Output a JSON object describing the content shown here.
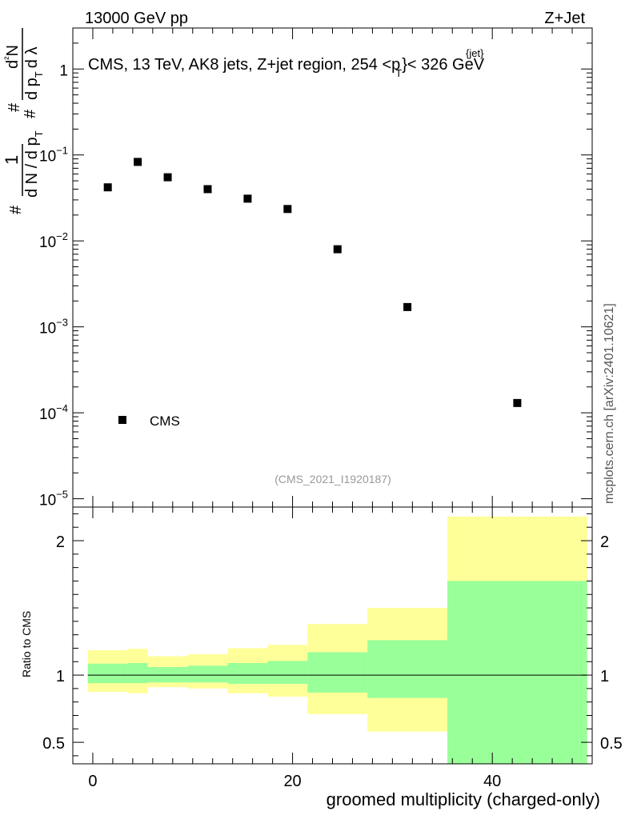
{
  "header": {
    "left": "13000 GeV pp",
    "right": "Z+Jet"
  },
  "side_label": "mcplots.cern.ch [arXiv:2401.10621]",
  "watermark": "(CMS_2021_I1920187)",
  "chart_data": [
    {
      "type": "scatter",
      "title": "CMS, 13 TeV, AK8 jets, Z+jet region, 254 <p",
      "title_sup": "{jet}",
      "title_sub": "T",
      "title_tail": "}< 326 GeV",
      "yscale": "log",
      "ylim": [
        8e-06,
        3
      ],
      "xlim": [
        -2,
        50
      ],
      "y_ticks": [
        {
          "v": 1,
          "base": "1",
          "exp": ""
        },
        {
          "v": 0.1,
          "base": "10",
          "exp": "−1"
        },
        {
          "v": 0.01,
          "base": "10",
          "exp": "−2"
        },
        {
          "v": 0.001,
          "base": "10",
          "exp": "−3"
        },
        {
          "v": 0.0001,
          "base": "10",
          "exp": "−4"
        },
        {
          "v": 1e-05,
          "base": "10",
          "exp": "−5"
        }
      ],
      "ylabel_parts": [
        "1",
        "d N / d p",
        "T",
        "#",
        "d",
        "²",
        "N",
        "d p",
        "T",
        "d λ",
        "#",
        "#"
      ],
      "series": [
        {
          "name": "CMS",
          "x": [
            1.5,
            4.5,
            7.5,
            11.5,
            15.5,
            19.5,
            24.5,
            31.5,
            42.5
          ],
          "y": [
            0.042,
            0.083,
            0.055,
            0.04,
            0.031,
            0.0235,
            0.008,
            0.0017,
            0.00013
          ]
        }
      ],
      "legend": {
        "entries": [
          "CMS"
        ],
        "position": "bottom-left"
      }
    },
    {
      "type": "area",
      "ylabel": "Ratio to CMS",
      "xlabel": "groomed multiplicity (charged-only)",
      "xlim": [
        -2,
        50
      ],
      "ylim": [
        0.34,
        2.25
      ],
      "x_ticks": [
        0,
        20,
        40
      ],
      "y_ticks": [
        0.5,
        1,
        2
      ],
      "reference_line": 1,
      "bands": [
        {
          "name": "total uncertainty",
          "color": "#ffff99",
          "bins": [
            {
              "x0": -0.5,
              "x1": 3.5,
              "lo": 0.875,
              "hi": 1.185
            },
            {
              "x0": 3.5,
              "x1": 5.5,
              "lo": 0.865,
              "hi": 1.195
            },
            {
              "x0": 5.5,
              "x1": 9.5,
              "lo": 0.91,
              "hi": 1.14
            },
            {
              "x0": 9.5,
              "x1": 13.5,
              "lo": 0.9,
              "hi": 1.155
            },
            {
              "x0": 13.5,
              "x1": 17.5,
              "lo": 0.865,
              "hi": 1.2
            },
            {
              "x0": 17.5,
              "x1": 21.5,
              "lo": 0.84,
              "hi": 1.225
            },
            {
              "x0": 21.5,
              "x1": 27.5,
              "lo": 0.71,
              "hi": 1.38
            },
            {
              "x0": 27.5,
              "x1": 35.5,
              "lo": 0.58,
              "hi": 1.5
            },
            {
              "x0": 35.5,
              "x1": 49.5,
              "lo": 0.34,
              "hi": 2.18
            }
          ]
        },
        {
          "name": "statistical uncertainty",
          "color": "#99ff99",
          "bins": [
            {
              "x0": -0.5,
              "x1": 3.5,
              "lo": 0.94,
              "hi": 1.085
            },
            {
              "x0": 3.5,
              "x1": 5.5,
              "lo": 0.94,
              "hi": 1.09
            },
            {
              "x0": 5.5,
              "x1": 9.5,
              "lo": 0.945,
              "hi": 1.06
            },
            {
              "x0": 9.5,
              "x1": 13.5,
              "lo": 0.945,
              "hi": 1.07
            },
            {
              "x0": 13.5,
              "x1": 17.5,
              "lo": 0.935,
              "hi": 1.09
            },
            {
              "x0": 17.5,
              "x1": 21.5,
              "lo": 0.935,
              "hi": 1.105
            },
            {
              "x0": 21.5,
              "x1": 27.5,
              "lo": 0.87,
              "hi": 1.17
            },
            {
              "x0": 27.5,
              "x1": 35.5,
              "lo": 0.83,
              "hi": 1.26
            },
            {
              "x0": 35.5,
              "x1": 49.5,
              "lo": 0.34,
              "hi": 1.7
            }
          ]
        }
      ]
    }
  ]
}
